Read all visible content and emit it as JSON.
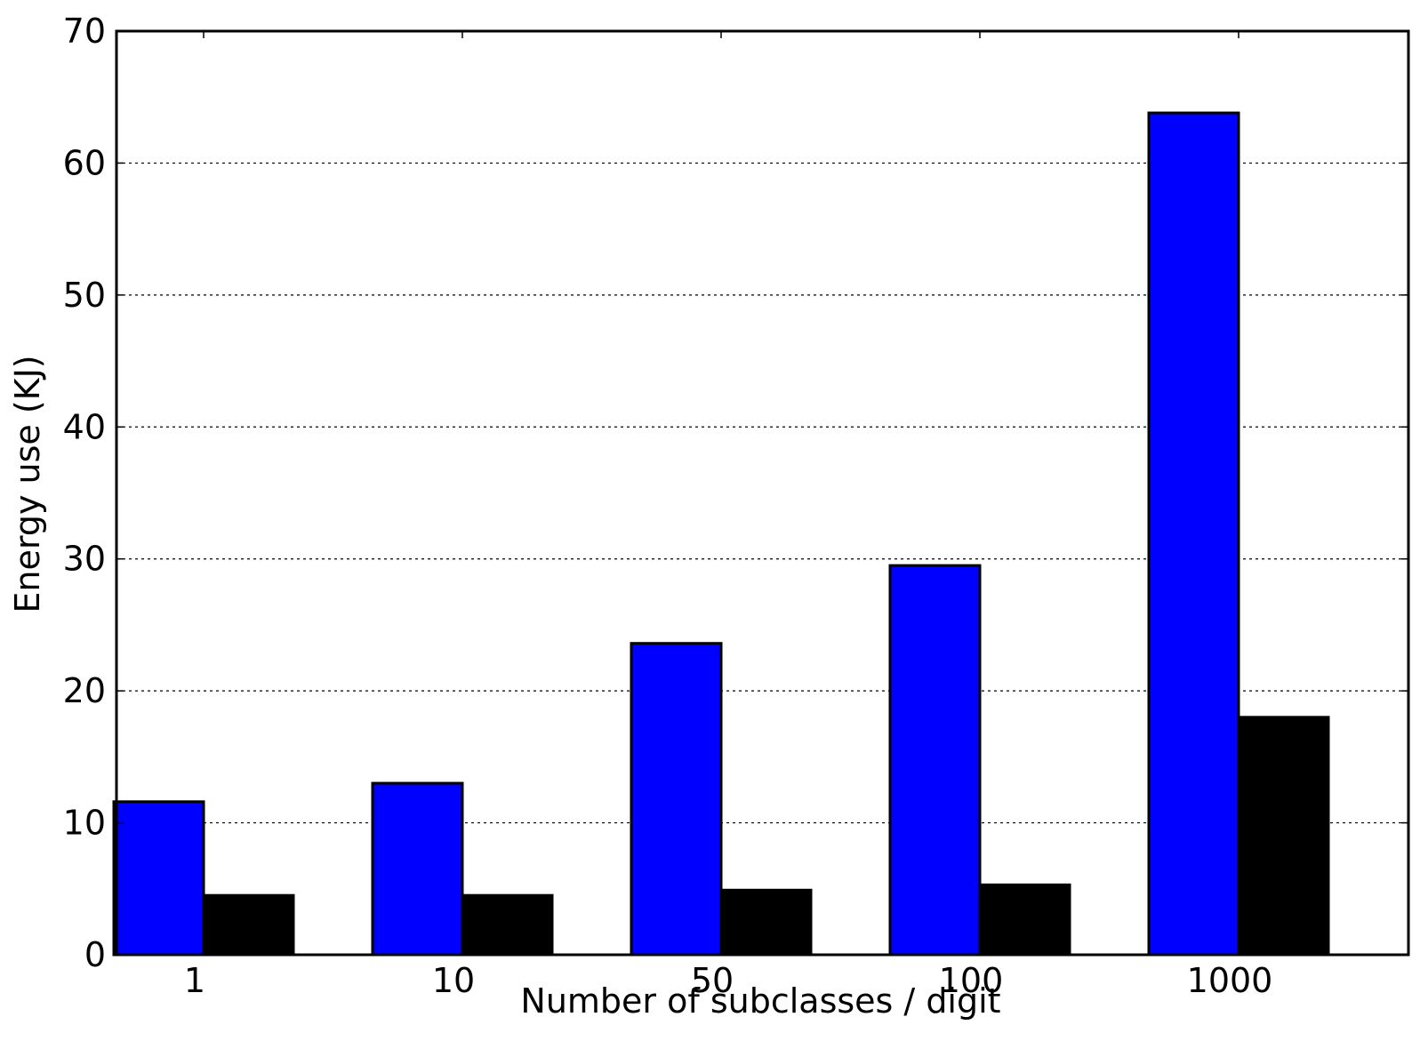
{
  "chart_data": {
    "type": "bar",
    "title": "",
    "xlabel": "Number of subclasses / digit",
    "ylabel": "Energy use (KJ)",
    "categories": [
      "1",
      "10",
      "50",
      "100",
      "1000"
    ],
    "series": [
      {
        "color": "#0000ff",
        "values": [
          11.6,
          13.0,
          23.6,
          29.5,
          63.8
        ]
      },
      {
        "color": "#000000",
        "values": [
          4.5,
          4.5,
          4.9,
          5.3,
          18.0
        ]
      }
    ],
    "ylim": [
      0,
      70
    ],
    "yticks": [
      0,
      10,
      20,
      30,
      40,
      50,
      60,
      70
    ],
    "grid": "y-dotted",
    "legend": "none"
  }
}
